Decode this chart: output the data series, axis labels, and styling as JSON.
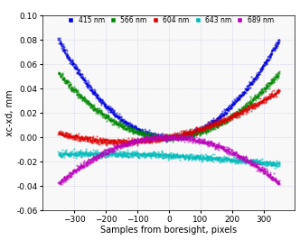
{
  "wavelengths": [
    "415 nm",
    "566 nm",
    "604 nm",
    "643 nm",
    "689 nm"
  ],
  "colors": [
    "#0000dd",
    "#008800",
    "#dd0000",
    "#00bbbb",
    "#bb00bb"
  ],
  "x_range": [
    -350,
    350
  ],
  "ylim": [
    -0.06,
    0.1
  ],
  "xlim": [
    -400,
    400
  ],
  "xlabel": "Samples from boresight, pixels",
  "ylabel": "xc-xd, mm",
  "curve_params": [
    [
      6.5e-07,
      0.0,
      0.0
    ],
    [
      4.3e-07,
      0.0,
      0.0
    ],
    [
      1.7e-07,
      5e-05,
      0.0
    ],
    [
      -2.5e-08,
      -1.2e-05,
      -0.015
    ],
    [
      -3.1e-07,
      0.0,
      0.0
    ]
  ],
  "yticks": [
    -0.06,
    -0.04,
    -0.02,
    0,
    0.02,
    0.04,
    0.06,
    0.08,
    0.1
  ],
  "xticks": [
    -300,
    -200,
    -100,
    0,
    100,
    200,
    300
  ],
  "grid_color": "#c8c8e8",
  "bg_color": "#f8f8f8"
}
